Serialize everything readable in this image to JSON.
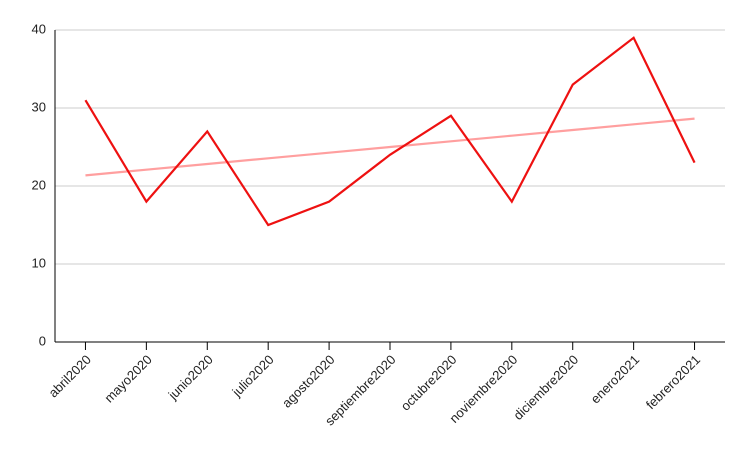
{
  "chart_data": {
    "type": "line",
    "categories": [
      "abril2020",
      "mayo2020",
      "junio2020",
      "julio2020",
      "agosto2020",
      "septiembre2020",
      "octubre2020",
      "noviembre2020",
      "diciembre2020",
      "enero2021",
      "febrero2021"
    ],
    "series": [
      {
        "color": "#ee1111",
        "values": [
          31,
          18,
          27,
          15,
          18,
          24,
          29,
          18,
          33,
          39,
          23
        ]
      },
      {
        "color": "#ff9f9f",
        "values": [
          21.36,
          22.09,
          22.82,
          23.55,
          24.27,
          25.0,
          25.73,
          26.45,
          27.18,
          27.91,
          28.64
        ]
      }
    ],
    "ylim": [
      0,
      40
    ],
    "yticks": [
      0,
      10,
      20,
      30,
      40
    ],
    "grid": true
  }
}
